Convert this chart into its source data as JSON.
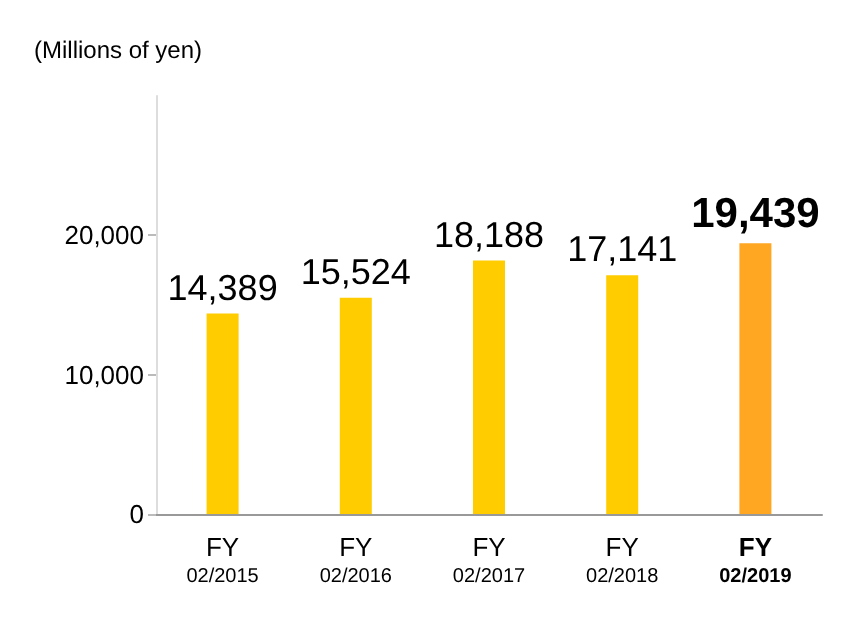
{
  "chart_data": {
    "type": "bar",
    "ylabel": "(Millions of yen)",
    "categories": [
      "FY\n02/2015",
      "FY\n02/2016",
      "FY\n02/2017",
      "FY\n02/2018",
      "FY\n02/2019"
    ],
    "values": [
      14389,
      15524,
      18188,
      17141,
      19439
    ],
    "colors": [
      "#ffcc00",
      "#ffcc00",
      "#ffcc00",
      "#ffcc00",
      "#ffa722"
    ],
    "value_labels": [
      "14,389",
      "15,524",
      "18,188",
      "17,141",
      "19,439"
    ],
    "ylim": [
      0,
      30000
    ],
    "yticks": [
      {
        "value": 0,
        "label": "0"
      },
      {
        "value": 10000,
        "label": "10,000"
      },
      {
        "value": 20000,
        "label": "20,000"
      }
    ],
    "grid": false
  }
}
